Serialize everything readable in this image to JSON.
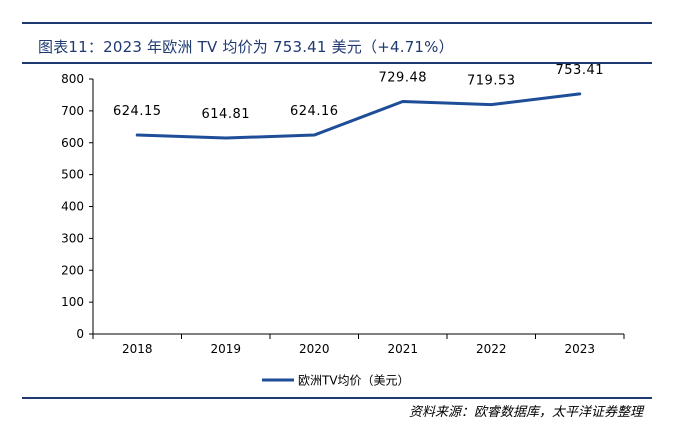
{
  "header": {
    "title": "图表11：2023 年欧洲 TV 均价为 753.41 美元（+4.71%）"
  },
  "footer": {
    "source": "资料来源：欧睿数据库，太平洋证券整理"
  },
  "colors": {
    "accent": "#1f3a70",
    "series": "#1f4e99",
    "axis": "#000000"
  },
  "chart_data": {
    "type": "line",
    "title": "",
    "xlabel": "",
    "ylabel": "",
    "categories": [
      "2018",
      "2019",
      "2020",
      "2021",
      "2022",
      "2023"
    ],
    "series": [
      {
        "name": "欧洲TV均价（美元）",
        "values": [
          624.15,
          614.81,
          624.16,
          729.48,
          719.53,
          753.41
        ],
        "labels": [
          "624.15",
          "614.81",
          "624.16",
          "729.48",
          "719.53",
          "753.41"
        ]
      }
    ],
    "ylim": [
      0,
      800
    ],
    "yticks": [
      0,
      100,
      200,
      300,
      400,
      500,
      600,
      700,
      800
    ],
    "legend": "bottom-center",
    "grid": false
  }
}
